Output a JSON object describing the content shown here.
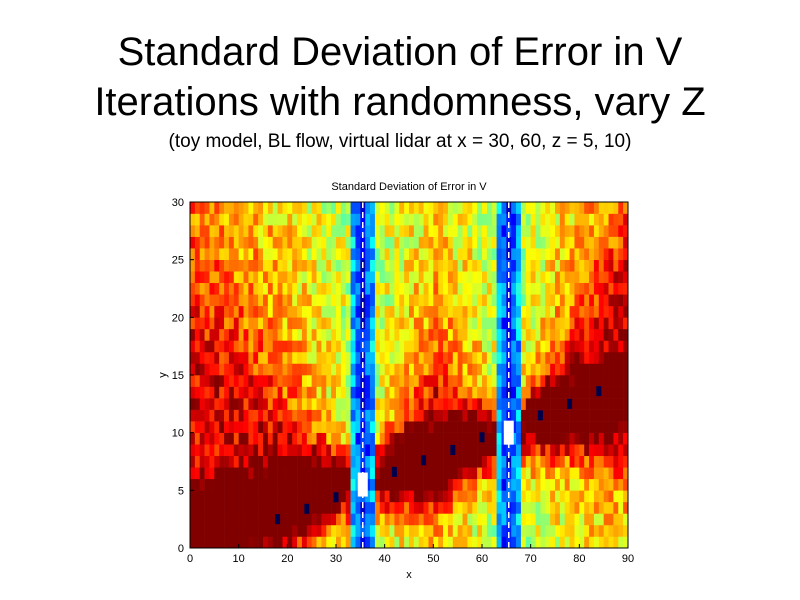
{
  "slide": {
    "title_line1": "Standard Deviation of Error in V",
    "title_line2": "Iterations with randomness, vary Z",
    "subtitle": "(toy model, BL flow, virtual lidar at x = 30, 60, z = 5, 10)"
  },
  "chart_data": {
    "type": "heatmap",
    "title": "Standard Deviation of Error in V",
    "xlabel": "x",
    "ylabel": "y",
    "xlim": [
      0,
      90
    ],
    "ylim": [
      0,
      30
    ],
    "xticks": [
      0,
      10,
      20,
      30,
      40,
      50,
      60,
      70,
      80,
      90
    ],
    "yticks": [
      0,
      5,
      10,
      15,
      20,
      25,
      30
    ],
    "colormap": "jet",
    "color_range": [
      0,
      1
    ],
    "grid_nx": 90,
    "grid_ny": 30,
    "field_description": "Low values (blue) along vertical bands near x = 35-36 and x = 65-66 (lidar positions); high values (red) along a rising diagonal band from (0,2) through (35,5), (65,10) to (90,13); medium values (yellow-green) elsewhere.",
    "lidar_lines_x": [
      35.5,
      65.5
    ],
    "white_gaps": [
      {
        "x": 35.5,
        "y": 5.5
      },
      {
        "x": 65.5,
        "y": 10
      }
    ],
    "markers": [
      {
        "x": 18,
        "y": 2.5
      },
      {
        "x": 24,
        "y": 3.4
      },
      {
        "x": 30,
        "y": 4.4
      },
      {
        "x": 42,
        "y": 6.6
      },
      {
        "x": 48,
        "y": 7.6
      },
      {
        "x": 54,
        "y": 8.5
      },
      {
        "x": 60,
        "y": 9.6
      },
      {
        "x": 72,
        "y": 11.5
      },
      {
        "x": 78,
        "y": 12.5
      },
      {
        "x": 84,
        "y": 13.6
      }
    ],
    "colors": {
      "marker": "#00004a",
      "line": "#ffffff"
    }
  }
}
